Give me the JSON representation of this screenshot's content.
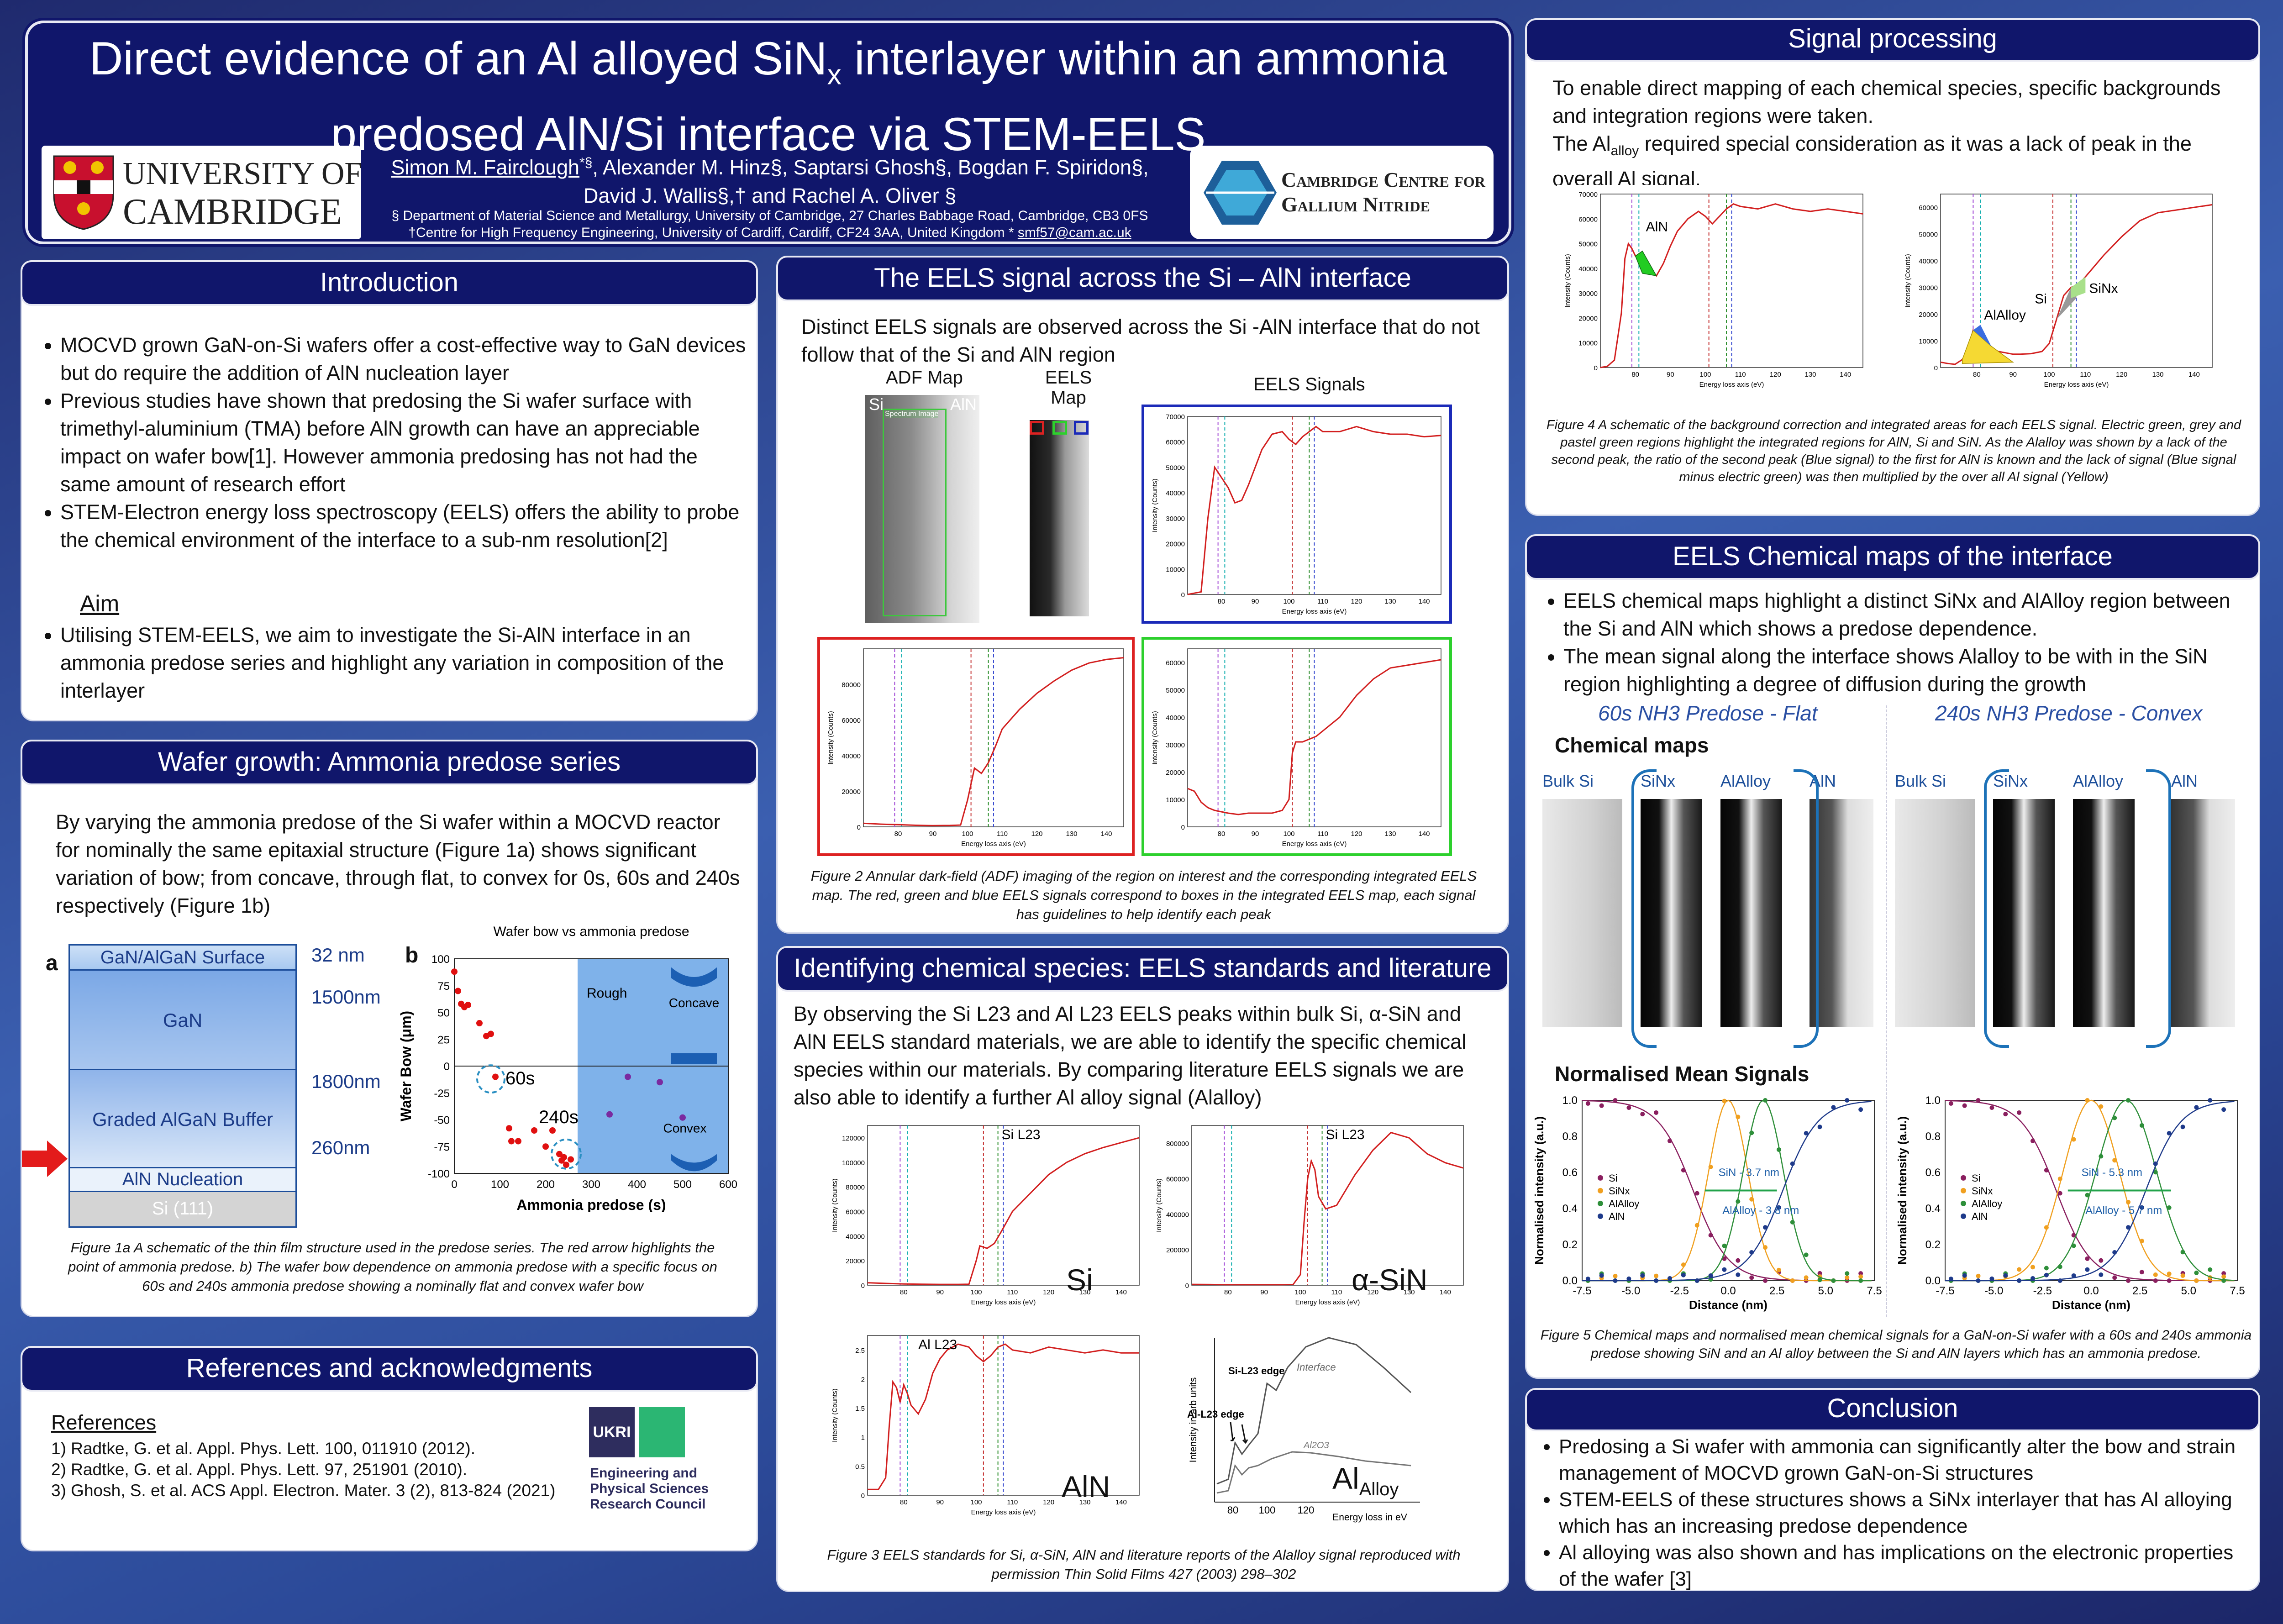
{
  "title": {
    "line1_a": "Direct evidence of an Al alloyed SiN",
    "line1_sub": "x",
    "line1_b": " interlayer within an ammonia",
    "line2": "predosed AlN/Si interface via STEM-EELS",
    "authors_a": "Simon M. Fairclough",
    "authors_a_sup": "*§",
    "authors_b": ", Alexander M. Hinz§, Saptarsi Ghosh§, Bogdan F. Spiridon§,",
    "authors_line2": "David J. Wallis§,† and Rachel A. Oliver §",
    "affil1": "§ Department of Material Science and Metallurgy, University of Cambridge, 27 Charles Babbage Road, Cambridge, CB3 0FS",
    "affil2": "†Centre for High Frequency Engineering, University of Cardiff, Cardiff, CF24 3AA, United Kingdom * ",
    "email": "smf57@cam.ac.uk",
    "logo_left_1": "UNIVERSITY OF",
    "logo_left_2": "CAMBRIDGE",
    "logo_right_1": "Cambridge Centre for",
    "logo_right_2": "Gallium Nitride"
  },
  "intro": {
    "header": "Introduction",
    "bullets": [
      "MOCVD grown GaN-on-Si wafers offer a cost-effective way to GaN devices but do require the addition of AlN nucleation layer",
      "Previous studies have shown that predosing the Si wafer surface with trimethyl-aluminium (TMA) before AlN growth can have an appreciable impact on wafer bow[1]. However ammonia predosing has not had the same amount of research effort",
      "STEM-Electron energy loss spectroscopy (EELS) offers the ability to probe the chemical environment of the interface to a sub-nm resolution[2]"
    ],
    "aim_label": "Aim",
    "aim_bullet": "Utilising STEM-EELS, we aim to investigate the Si-AlN interface in an ammonia predose series and highlight any variation in composition of the interlayer"
  },
  "wafer": {
    "header": "Wafer growth: Ammonia predose series",
    "text": "By varying the ammonia predose of the Si wafer within a MOCVD reactor for nominally the same epitaxial structure (Figure 1a) shows significant variation of bow; from concave, through flat, to convex for 0s, 60s and 240s respectively (Figure 1b)",
    "panel_a": "a",
    "panel_b": "b",
    "layers": [
      {
        "name": "GaN/AlGaN Surface",
        "thickness": "32 nm"
      },
      {
        "name": "GaN",
        "thickness": "1500nm"
      },
      {
        "name": "Graded AlGaN Buffer",
        "thickness": "1800nm"
      },
      {
        "name": "AlN Nucleation",
        "thickness": "260nm"
      },
      {
        "name": "Si (111)",
        "thickness": ""
      }
    ],
    "caption": "Figure 1a A schematic of the thin film structure used in the predose series. The red arrow highlights the point of ammonia predose. b) The wafer bow dependence on ammonia predose with a specific focus on 60s and 240s ammonia predose showing a nominally flat and convex wafer bow"
  },
  "chart_data": [
    {
      "type": "scatter",
      "title": "Wafer bow vs ammonia predose",
      "xlabel": "Ammonia predose (s)",
      "ylabel": "Wafer Bow (μm)",
      "xlim": [
        0,
        600
      ],
      "ylim": [
        -100,
        100
      ],
      "xticks": [
        0,
        100,
        200,
        300,
        400,
        500,
        600
      ],
      "yticks": [
        100,
        75,
        50,
        25,
        0,
        -25,
        -50,
        -75,
        -100
      ],
      "regions": [
        {
          "label": "Rough",
          "from": 270,
          "to": 600
        }
      ],
      "annotations": [
        "60s",
        "240s",
        "Concave",
        "Convex"
      ],
      "series": [
        {
          "color": "#e01010",
          "points": [
            [
              0,
              88
            ],
            [
              8,
              70
            ],
            [
              15,
              58
            ],
            [
              22,
              55
            ],
            [
              30,
              57
            ],
            [
              55,
              40
            ],
            [
              70,
              28
            ],
            [
              80,
              30
            ],
            [
              90,
              -10
            ],
            [
              120,
              -58
            ],
            [
              125,
              -70
            ],
            [
              140,
              -70
            ],
            [
              175,
              -60
            ],
            [
              200,
              -75
            ],
            [
              215,
              -60
            ],
            [
              230,
              -82
            ],
            [
              235,
              -88
            ],
            [
              240,
              -85
            ],
            [
              245,
              -92
            ],
            [
              255,
              -87
            ]
          ]
        },
        {
          "color": "#7a2aa0",
          "points": [
            [
              340,
              -45
            ],
            [
              380,
              -10
            ],
            [
              450,
              -15
            ],
            [
              500,
              -48
            ]
          ]
        }
      ]
    },
    {
      "type": "line",
      "title": "",
      "xlabel": "Energy loss axis (eV)",
      "ylabel": "Intensity (Counts)",
      "xlim": [
        70,
        145
      ],
      "ylim": [
        0,
        70000
      ],
      "x": [
        70,
        74,
        76,
        78,
        80,
        82,
        84,
        86,
        88,
        90,
        92,
        95,
        98,
        100,
        102,
        104,
        106,
        108,
        110,
        115,
        120,
        125,
        130,
        135,
        140,
        145
      ],
      "values": [
        0,
        1000,
        30000,
        50000,
        46000,
        42000,
        36000,
        37000,
        43000,
        50000,
        57000,
        63000,
        64000,
        61000,
        59000,
        62000,
        64000,
        66000,
        64000,
        64000,
        66000,
        64000,
        63000,
        63000,
        62000,
        62500
      ]
    }
  ],
  "eels": {
    "header": "The EELS signal across the Si – AlN interface",
    "text": "Distinct EELS signals are observed across the Si -AlN interface that do not follow that of the Si and AlN region",
    "adf_label": "ADF Map",
    "eels_label": "EELS Map",
    "signals_label": "EELS Signals",
    "si_label": "Si",
    "aln_label": "AlN",
    "spectrum_image": "Spectrum Image",
    "caption": "Figure 2 Annular dark-field (ADF) imaging of the region on interest and the corresponding integrated EELS map. The red, green and blue EELS signals correspond to boxes in the integrated EELS map, each signal has guidelines to help identify each peak"
  },
  "ident": {
    "header": "Identifying chemical species: EELS standards and literature",
    "text": "By observing the Si L23 and Al L23 EELS peaks within bulk Si, α-SiN and AlN EELS standard materials, we are able to identify the specific chemical species within our materials. By comparing literature EELS signals we are also able to identify a further Al alloy signal (Alalloy)",
    "si_l23": "Si L23",
    "al_l23": "Al L23",
    "label_si": "Si",
    "label_asin": "α-SiN",
    "label_aln": "AlN",
    "label_alalloy": "Al",
    "label_alalloy_sub": "Alloy",
    "lit_si_edge": "Si-L23 edge",
    "lit_al_edge": "Al-L23 edge",
    "lit_interface": "Interface",
    "lit_al2o3": "Al2O3",
    "lit_xlabel": "Energy loss in eV",
    "lit_ylabel": "Intensity in arb units",
    "caption": "Figure 3 EELS standards for Si, α-SiN, AlN and literature reports of the Alalloy signal reproduced with permission Thin Solid Films 427 (2003) 298–302"
  },
  "references": {
    "header": "References and acknowledgments",
    "title": "References",
    "items": [
      "1) Radtke, G. et al. Appl. Phys. Lett. 100, 011910 (2012).",
      "2) Radtke, G. et al. Appl. Phys. Lett. 97, 251901 (2010).",
      "3) Ghosh, S. et al. ACS Appl. Electron. Mater. 3 (2), 813-824 (2021)"
    ],
    "epsrc_1": "Engineering and",
    "epsrc_2": "Physical Sciences",
    "epsrc_3": "Research Council",
    "ukri": "UKRI"
  },
  "signal": {
    "header": "Signal processing",
    "text1": "To enable direct mapping of each chemical species, specific backgrounds and integration regions were taken.",
    "text2a": "The Al",
    "text2sub": "alloy",
    "text2b": " required special consideration as it was a lack of peak in the overall Al signal.",
    "aln_label": "AlN",
    "si_label": "Si",
    "sinx_label": "SiNx",
    "alalloy_label": "AlAlloy",
    "caption": "Figure 4 A schematic of the background correction and integrated areas for each EELS signal. Electric green, grey and pastel green regions highlight the integrated regions for AlN, Si and SiN. As the Alalloy was shown by a lack of the second peak, the ratio of the second peak (Blue signal) to the first for AlN is known and the lack of signal (Blue signal minus electric green) was then multiplied by the over all Al signal (Yellow)"
  },
  "maps": {
    "header": "EELS Chemical maps of the interface",
    "bullet1": "EELS chemical maps highlight a distinct SiNx and AlAlloy region between the Si and AlN which shows a predose dependence.",
    "bullet2": "The mean signal along the interface shows Alalloy to be with in the SiN region highlighting a degree of diffusion during the growth",
    "flat_label": "60s NH3 Predose - Flat",
    "convex_label": "240s NH3 Predose - Convex",
    "chem_maps": "Chemical maps",
    "norm_signals": "Normalised Mean Signals",
    "map_labels": [
      "Bulk Si",
      "SiNx",
      "AlAlloy",
      "AlN"
    ],
    "legend": [
      "Si",
      "SiNx",
      "AlAlloy",
      "AlN"
    ],
    "flat_sin": "SiN - 3.7 nm",
    "flat_al": "AlAlloy - 3.8 nm",
    "convex_sin": "SiN - 5.3 nm",
    "convex_al": "AlAlloy - 5.7 nm",
    "xlabel": "Distance (nm)",
    "ylabel": "Normalised intensity (a.u.)",
    "caption": "Figure 5 Chemical maps and normalised mean chemical signals for a GaN-on-Si wafer with a 60s and 240s ammonia predose showing SiN and an Al alloy between the Si and AlN layers which has an ammonia predose."
  },
  "conclusion": {
    "header": "Conclusion",
    "bullets": [
      "Predosing a Si wafer with ammonia can significantly alter the bow and strain management of MOCVD grown GaN-on-Si structures",
      "STEM-EELS of these structures shows a SiNx interlayer that has Al alloying which has an increasing predose dependence",
      "Al alloying was also shown and has implications on the electronic properties of the wafer [3]"
    ]
  }
}
